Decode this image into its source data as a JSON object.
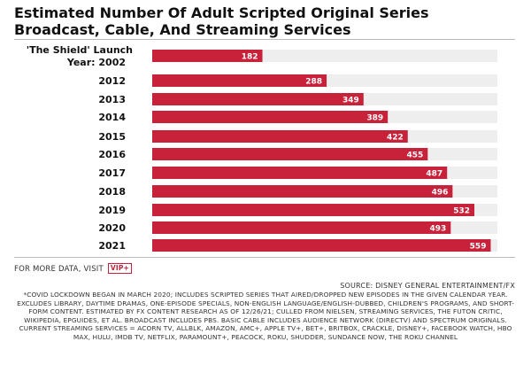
{
  "chart_data": {
    "type": "bar",
    "orientation": "horizontal",
    "title": "Estimated Number Of Adult Scripted Original Series Broadcast, Cable, And Streaming Services",
    "categories": [
      "'The Shield' Launch Year: 2002",
      "2012",
      "2013",
      "2014",
      "2015",
      "2016",
      "2017",
      "2018",
      "2019",
      "2020",
      "2021"
    ],
    "values": [
      182,
      288,
      349,
      389,
      422,
      455,
      487,
      496,
      532,
      493,
      559
    ],
    "xlim": [
      0,
      570
    ],
    "data_labels": true,
    "grid": false,
    "colors": {
      "bar": "#c8213a",
      "track": "#eeeeee"
    }
  },
  "footer": {
    "more_data": "FOR MORE DATA, VISIT",
    "vip_badge": "VIP+",
    "source": "SOURCE: DISNEY GENERAL ENTERTAINMENT/FX",
    "notes": "*COVID LOCKDOWN BEGAN IN MARCH 2020; INCLUDES SCRIPTED SERIES THAT AIRED/DROPPED NEW EPISODES IN THE GIVEN CALENDAR YEAR. EXCLUDES LIBRARY, DAYTIME DRAMAS, ONE-EPISODE SPECIALS, NON-ENGLISH LANGUAGE/ENGLISH-DUBBED, CHILDREN'S PROGRAMS, AND SHORT-FORM CONTENT. ESTIMATED BY FX CONTENT RESEARCH AS OF 12/26/21; CULLED FROM NIELSEN, STREAMING SERVICES, THE FUTON CRITIC, WIKIPEDIA, EPGUIDES, ET AL. BROADCAST INCLUDES PBS. BASIC CABLE INCLUDES AUDIENCE NETWORK (DIRECTV) AND SPECTRUM ORIGINALS. CURRENT STREAMING SERVICES = ACORN TV, ALLBLK, AMAZON, AMC+, APPLE TV+, BET+, BRITBOX, CRACKLE, DISNEY+, FACEBOOK WATCH, HBO MAX, HULU, IMDB TV, NETFLIX, PARAMOUNT+, PEACOCK, ROKU, SHUDDER, SUNDANCE NOW, THE ROKU CHANNEL"
  }
}
